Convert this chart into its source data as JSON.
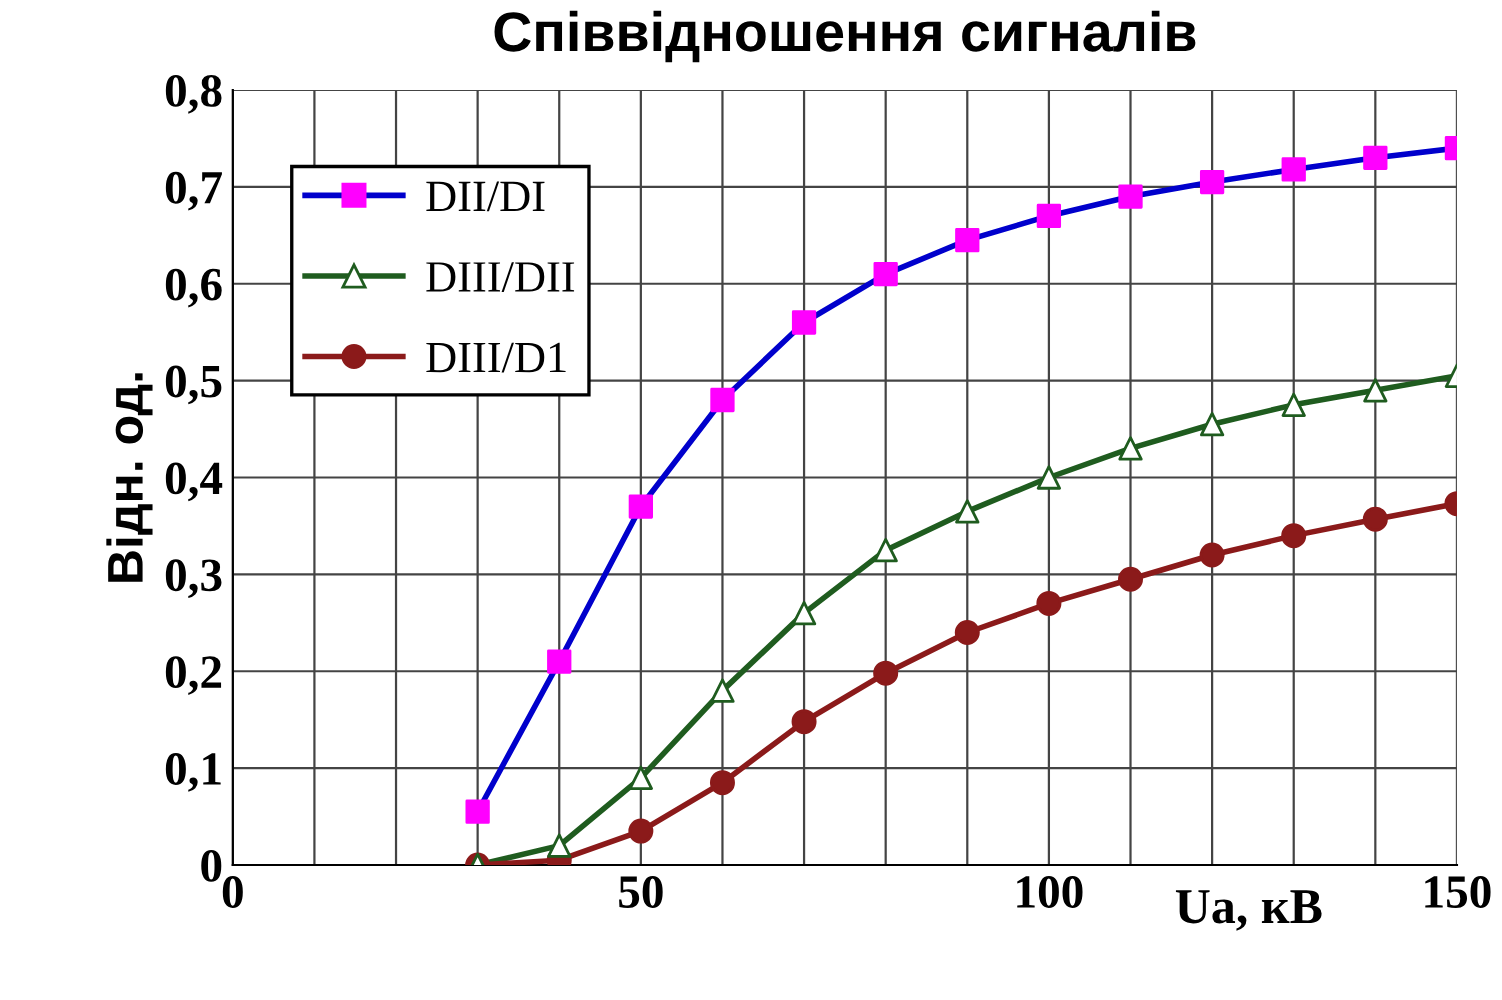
{
  "chart_data": {
    "type": "line",
    "title": "Співвідношення сигналів",
    "xlabel": "Ua, кВ",
    "ylabel": "Відн. од.",
    "xlim": [
      0,
      150
    ],
    "xticks": [
      0,
      {
        "value": 10,
        "label": null
      },
      {
        "value": 20,
        "label": null
      },
      {
        "value": 30,
        "label": null
      },
      {
        "value": 40,
        "label": null
      },
      50,
      {
        "value": 60,
        "label": null
      },
      {
        "value": 70,
        "label": null
      },
      {
        "value": 80,
        "label": null
      },
      {
        "value": 90,
        "label": null
      },
      100,
      {
        "value": 110,
        "label": null
      },
      {
        "value": 120,
        "label": null
      },
      {
        "value": 130,
        "label": null
      },
      {
        "value": 140,
        "label": null
      },
      150
    ],
    "ylim": [
      0,
      0.8
    ],
    "yticks": [
      0,
      {
        "value": 0.1,
        "label": "0,1"
      },
      {
        "value": 0.2,
        "label": "0,2"
      },
      {
        "value": 0.3,
        "label": "0,3"
      },
      {
        "value": 0.4,
        "label": "0,4"
      },
      {
        "value": 0.5,
        "label": "0,5"
      },
      {
        "value": 0.6,
        "label": "0,6"
      },
      {
        "value": 0.7,
        "label": "0,7"
      },
      {
        "value": 0.8,
        "label": "0,8"
      }
    ],
    "grid": true,
    "legend": "top left",
    "x": [
      30,
      40,
      50,
      60,
      70,
      80,
      90,
      100,
      110,
      120,
      130,
      140,
      150
    ],
    "series": [
      {
        "name": "DII/DI",
        "color": "#0000cc",
        "marker": "square",
        "colors": [
          "#ff00ff",
          "#ff00ff",
          "#ff00ff",
          "#ff00ff",
          "#ff00ff",
          "#ff00ff",
          "#ff00ff",
          "#ff00ff",
          "#ff00ff",
          "#ff00ff",
          "#ff00ff",
          "#ff00ff",
          "#ff00ff"
        ],
        "values": [
          0.055,
          0.21,
          0.37,
          0.48,
          0.56,
          0.61,
          0.645,
          0.67,
          0.69,
          0.705,
          0.718,
          0.73,
          0.74
        ]
      },
      {
        "name": "DIII/DII",
        "color": "#1f5c1f",
        "marker": "triangle",
        "colors": [
          "#ffffff",
          "#ffffff",
          "#ffffff",
          "#ffffff",
          "#ffffff",
          "#ffffff",
          "#ffffff",
          "#ffffff",
          "#ffffff",
          "#ffffff",
          "#ffffff",
          "#ffffff",
          "#ffffff"
        ],
        "values": [
          0.0,
          0.02,
          0.09,
          0.18,
          0.26,
          0.325,
          0.365,
          0.4,
          0.43,
          0.455,
          0.475,
          0.49,
          0.505
        ]
      },
      {
        "name": "DIII/D1",
        "color": "#8b1a1a",
        "marker": "circle",
        "values": [
          0.0,
          0.005,
          0.035,
          0.085,
          0.148,
          0.198,
          0.24,
          0.27,
          0.295,
          0.32,
          0.34,
          0.357,
          0.373
        ]
      }
    ]
  }
}
